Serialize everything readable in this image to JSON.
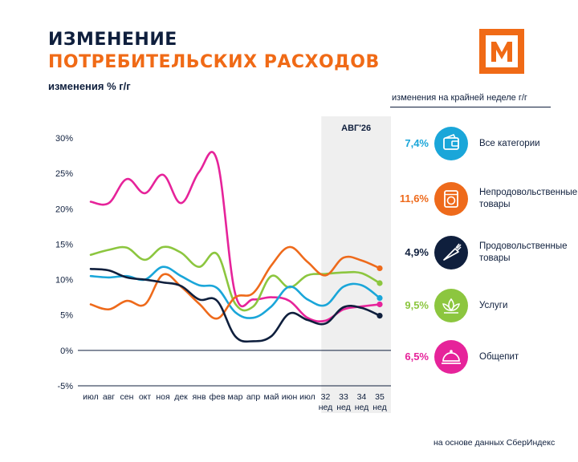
{
  "header": {
    "title_line1": "ИЗМЕНЕНИЕ",
    "title_line2": "ПОТРЕБИТЕЛЬСКИХ РАСХОДОВ",
    "logo_letter": "М",
    "subtitle": "изменения % г/г"
  },
  "legend": {
    "title": "изменения на крайней неделе г/г",
    "items": [
      {
        "value": "7,4%",
        "label_lines": [
          "Все категории"
        ],
        "color": "#1aa6d9",
        "icon": "wallet-icon"
      },
      {
        "value": "11,6%",
        "label_lines": [
          "Непродовольственные",
          "товары"
        ],
        "color": "#ee6a1b",
        "icon": "washing-machine-icon"
      },
      {
        "value": "4,9%",
        "label_lines": [
          "Продовольственные",
          "товары"
        ],
        "color": "#0f1f3d",
        "icon": "carrot-icon"
      },
      {
        "value": "9,5%",
        "label_lines": [
          "Услуги"
        ],
        "color": "#8cc63f",
        "icon": "lotus-icon"
      },
      {
        "value": "6,5%",
        "label_lines": [
          "Общепит"
        ],
        "color": "#e6239a",
        "icon": "cloche-icon"
      }
    ]
  },
  "source": "на основе данных СберИндекс",
  "chart_data": {
    "type": "line",
    "highlight_label": "АВГ'26",
    "categories": [
      [
        "июл"
      ],
      [
        "авг"
      ],
      [
        "сен"
      ],
      [
        "окт"
      ],
      [
        "ноя"
      ],
      [
        "дек"
      ],
      [
        "янв"
      ],
      [
        "фев"
      ],
      [
        "мар"
      ],
      [
        "апр"
      ],
      [
        "май"
      ],
      [
        "июн"
      ],
      [
        "июл"
      ],
      [
        "32",
        "нед"
      ],
      [
        "33",
        "нед"
      ],
      [
        "34",
        "нед"
      ],
      [
        "35",
        "нед"
      ]
    ],
    "highlight_from_index": 13,
    "y_ticks": [
      -5,
      0,
      5,
      10,
      15,
      20,
      25,
      30
    ],
    "y_tick_labels": [
      "-5%",
      "0%",
      "5%",
      "10%",
      "15%",
      "20%",
      "25%",
      "30%"
    ],
    "ylim": [
      -5,
      30
    ],
    "grid": false,
    "series": [
      {
        "name": "Общепит",
        "color": "#e6239a",
        "values": [
          21,
          20.8,
          24.2,
          22.2,
          24.8,
          20.8,
          25.2,
          26.8,
          8,
          7.2,
          7.5,
          7,
          4.6,
          4.2,
          5.8,
          6.2,
          6.5
        ]
      },
      {
        "name": "Услуги",
        "color": "#8cc63f",
        "values": [
          13.5,
          14.2,
          14.5,
          12.8,
          14.6,
          13.8,
          11.8,
          13.6,
          6.6,
          6.2,
          10.5,
          8.9,
          10.6,
          10.8,
          11,
          10.9,
          9.5
        ]
      },
      {
        "name": "Все категории",
        "color": "#1aa6d9",
        "values": [
          10.5,
          10.3,
          10.5,
          10,
          11.8,
          10.5,
          9.2,
          8.8,
          5.4,
          4.6,
          6.2,
          9,
          7.2,
          6.4,
          9,
          9.2,
          7.4
        ]
      },
      {
        "name": "Непродовольственные товары",
        "color": "#ee6a1b",
        "values": [
          6.5,
          5.8,
          7,
          6.5,
          10.7,
          9,
          6.6,
          4.5,
          7.5,
          8.1,
          12,
          14.6,
          12.5,
          10.6,
          13.1,
          12.7,
          11.6
        ]
      },
      {
        "name": "Продовольственные товары",
        "color": "#0f1f3d",
        "values": [
          11.5,
          11.3,
          10.3,
          10,
          9.6,
          9.1,
          7.2,
          7,
          2,
          1.3,
          2,
          5.2,
          4.3,
          3.8,
          6.1,
          6,
          4.9
        ]
      }
    ]
  }
}
